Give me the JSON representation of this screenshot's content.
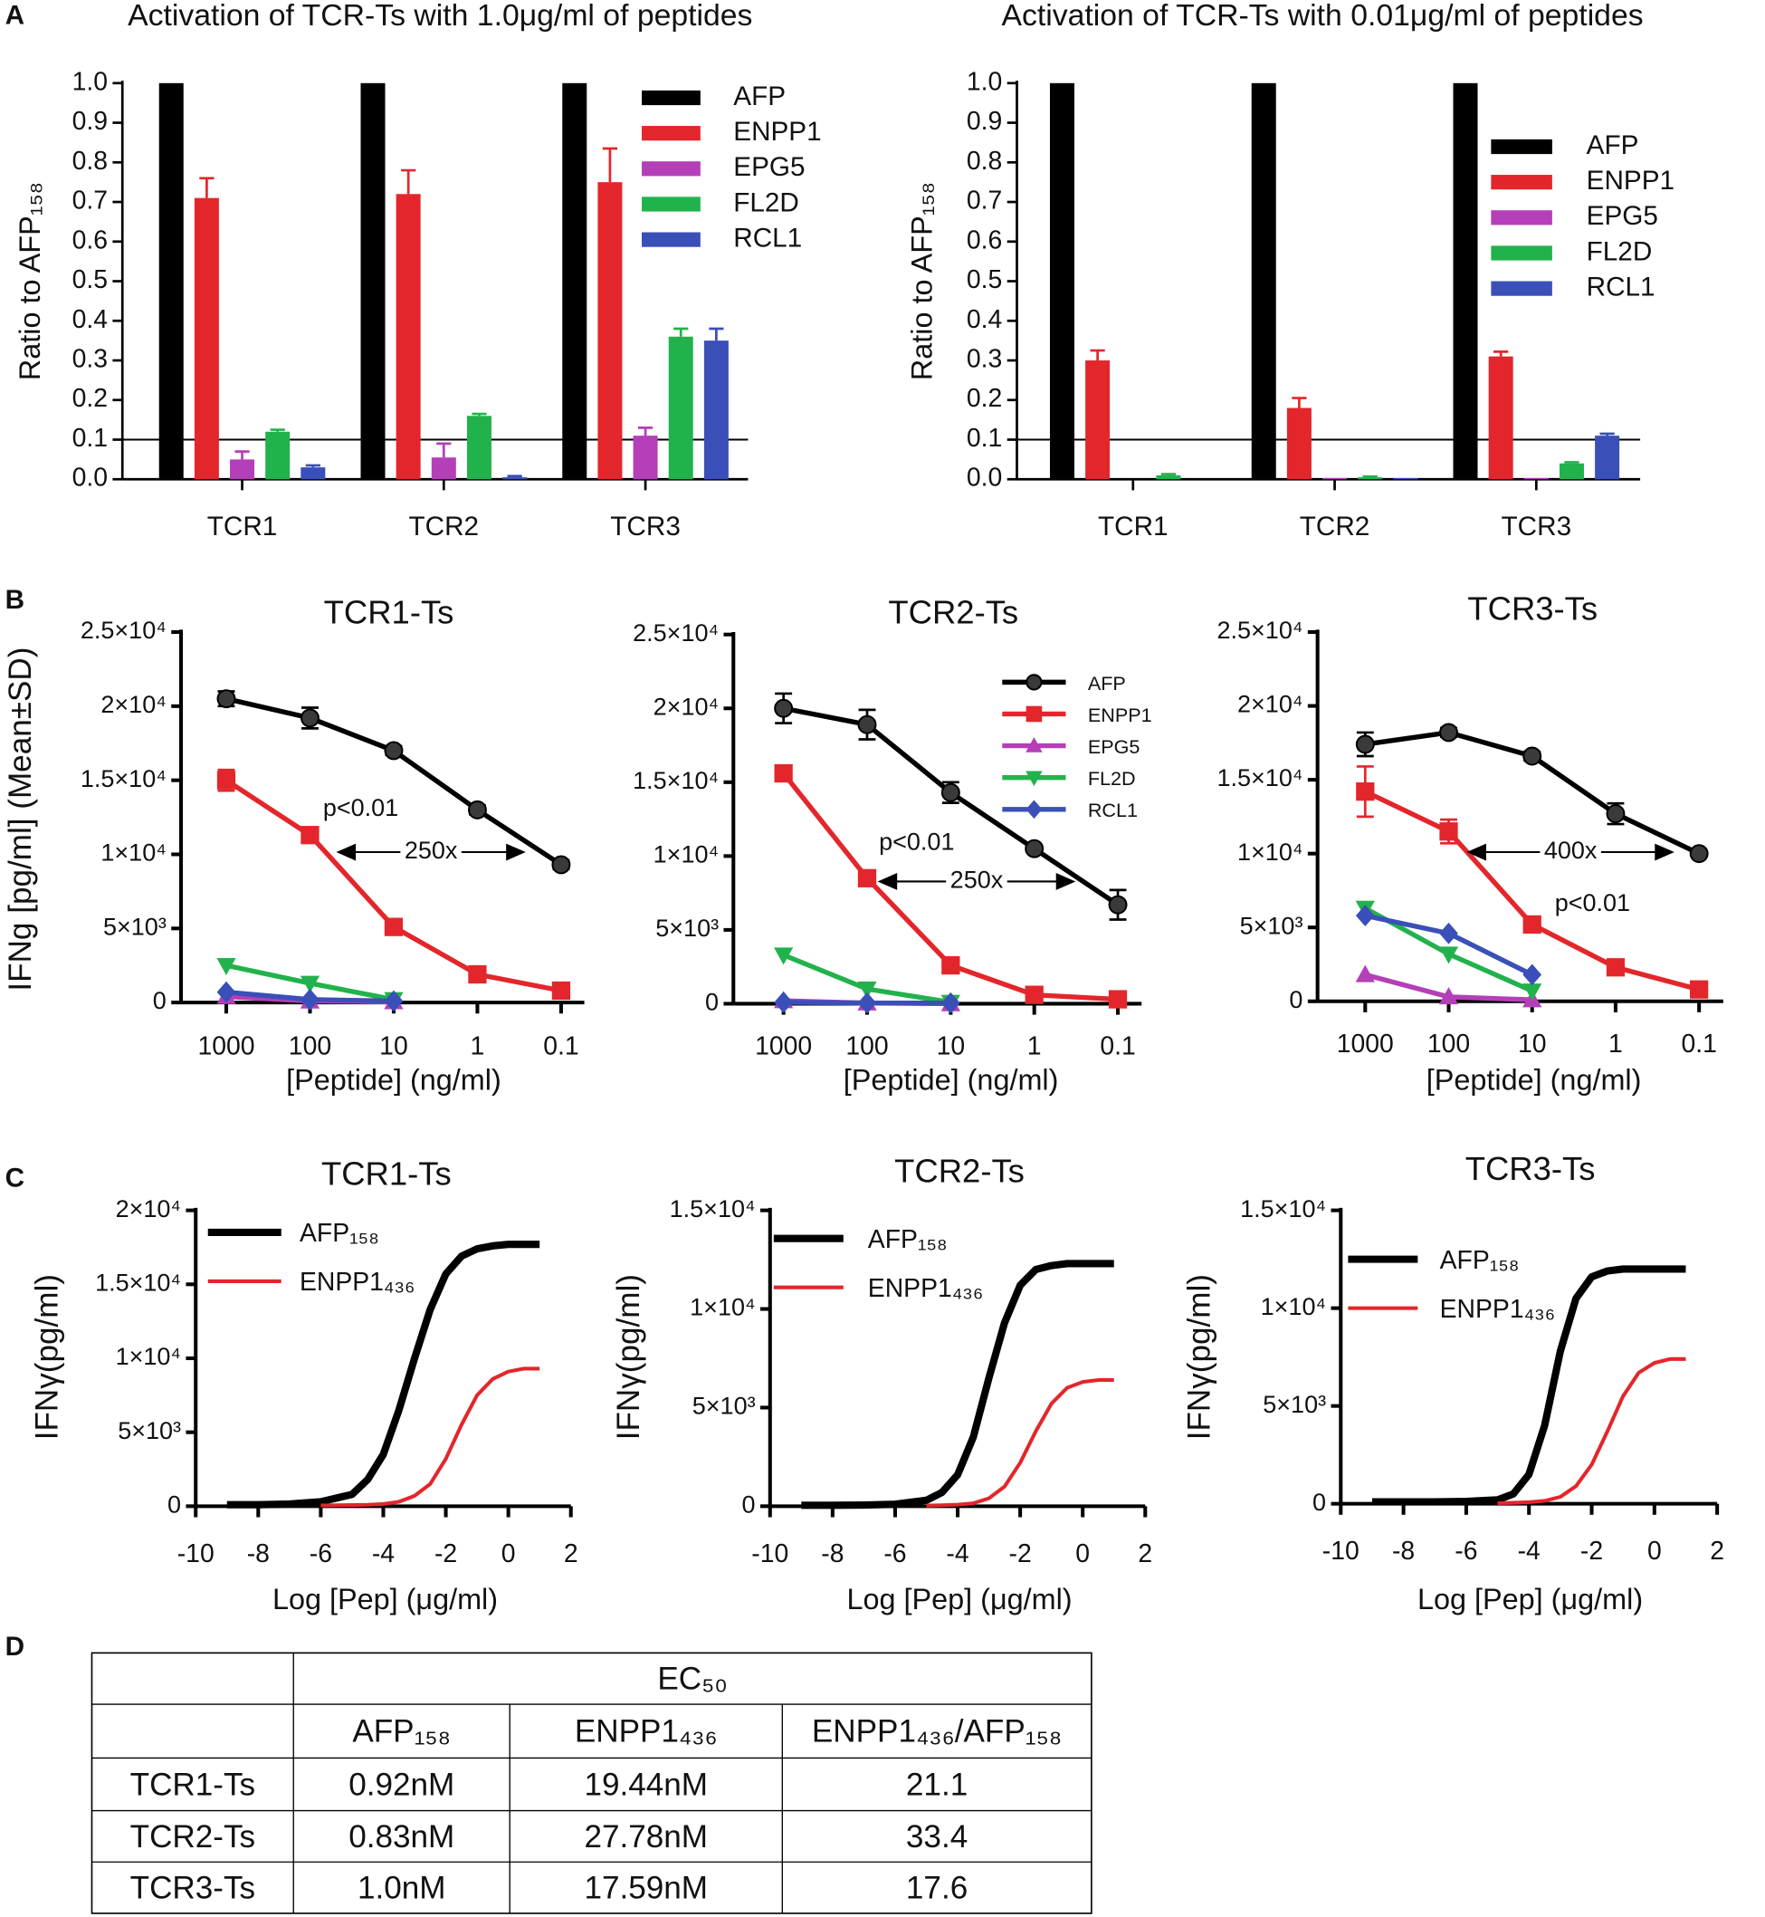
{
  "panel_labels": [
    "A",
    "B",
    "C",
    "D"
  ],
  "chart_data": [
    {
      "type": "bar",
      "title": "Activation of TCR-Ts with 1.0μg/ml of peptides",
      "ylabel": "Ratio to AFP₁₅₈",
      "categories": [
        "TCR1",
        "TCR2",
        "TCR3"
      ],
      "series": [
        {
          "name": "AFP",
          "color": "#000000",
          "values": [
            1.0,
            1.0,
            1.0
          ]
        },
        {
          "name": "ENPP1",
          "color": "#e3262b",
          "values": [
            0.71,
            0.72,
            0.75
          ],
          "errors": [
            0.05,
            0.06,
            0.085
          ]
        },
        {
          "name": "EPG5",
          "color": "#b43fb8",
          "values": [
            0.05,
            0.055,
            0.11
          ],
          "errors": [
            0.02,
            0.035,
            0.02
          ]
        },
        {
          "name": "FL2D",
          "color": "#22b24c",
          "values": [
            0.12,
            0.16,
            0.36
          ],
          "errors": [
            0.005,
            0.005,
            0.02
          ]
        },
        {
          "name": "RCL1",
          "color": "#3a4fb8",
          "values": [
            0.03,
            0.005,
            0.35
          ],
          "errors": [
            0.005,
            0.003,
            0.03
          ]
        }
      ],
      "ylim": [
        0,
        1.0
      ],
      "yticks": [
        {
          "value": 0,
          "label": "0.0"
        },
        0.1,
        0.2,
        0.3,
        0.4,
        0.5,
        0.6,
        0.7,
        0.8,
        0.9,
        {
          "value": 1.0,
          "label": "1.0"
        }
      ],
      "reference_line": 0.1,
      "legend": true
    },
    {
      "type": "bar",
      "title": "Activation of TCR-Ts with 0.01μg/ml of peptides",
      "ylabel": "Ratio to AFP₁₅₈",
      "categories": [
        "TCR1",
        "TCR2",
        "TCR3"
      ],
      "series": [
        {
          "name": "AFP",
          "color": "#000000",
          "values": [
            1.0,
            1.0,
            1.0
          ]
        },
        {
          "name": "ENPP1",
          "color": "#e3262b",
          "values": [
            0.3,
            0.18,
            0.31
          ],
          "errors": [
            0.025,
            0.025,
            0.012
          ]
        },
        {
          "name": "EPG5",
          "color": "#b43fb8",
          "values": [
            0,
            0.003,
            0.003
          ]
        },
        {
          "name": "FL2D",
          "color": "#22b24c",
          "values": [
            0.01,
            0.005,
            0.04
          ],
          "errors": [
            0.003,
            0.002,
            0.003
          ]
        },
        {
          "name": "RCL1",
          "color": "#3a4fb8",
          "values": [
            0,
            0.003,
            0.11
          ],
          "errors": [
            0,
            0,
            0.005
          ]
        }
      ],
      "ylim": [
        0,
        1.0
      ],
      "yticks": [
        {
          "value": 0,
          "label": "0.0"
        },
        0.1,
        0.2,
        0.3,
        0.4,
        0.5,
        0.6,
        0.7,
        0.8,
        0.9,
        {
          "value": 1.0,
          "label": "1.0"
        }
      ],
      "reference_line": 0.1,
      "legend": true
    },
    {
      "type": "line",
      "title": "TCR1-Ts",
      "ylabel": "IFNg [pg/ml] (Mean±SD)",
      "xlabel": "[Peptide] (ng/ml)",
      "categories": [
        "1000",
        "100",
        "10",
        "1",
        "0.1"
      ],
      "series": [
        {
          "name": "AFP",
          "color": "#000000",
          "marker": "circle",
          "values": [
            20500,
            19200,
            17000,
            13000,
            9300
          ],
          "errors": [
            500,
            700,
            300,
            300,
            300
          ]
        },
        {
          "name": "ENPP1",
          "color": "#e3262b",
          "marker": "square",
          "values": [
            15000,
            11300,
            5100,
            1900,
            800
          ],
          "errors": [
            700,
            400,
            200,
            200,
            100
          ]
        },
        {
          "name": "EPG5",
          "color": "#b43fb8",
          "marker": "triangle",
          "values": [
            400,
            100,
            50,
            null,
            null
          ]
        },
        {
          "name": "FL2D",
          "color": "#22b24c",
          "marker": "triangle-down",
          "values": [
            2500,
            1300,
            200,
            null,
            null
          ]
        },
        {
          "name": "RCL1",
          "color": "#3a4fb8",
          "marker": "diamond",
          "values": [
            700,
            200,
            100,
            null,
            null
          ]
        }
      ],
      "ylim": [
        0,
        25000
      ],
      "yticks": [
        0,
        {
          "value": 5000,
          "label": "5×10³"
        },
        {
          "value": 10000,
          "label": "1×10⁴"
        },
        {
          "value": 15000,
          "label": "1.5×10⁴"
        },
        {
          "value": 20000,
          "label": "2×10⁴"
        },
        {
          "value": 25000,
          "label": "2.5×10⁴"
        }
      ],
      "annotations": [
        {
          "text": "p<0.01"
        },
        {
          "text": "250x"
        }
      ],
      "legend": false
    },
    {
      "type": "line",
      "title": "TCR2-Ts",
      "xlabel": "[Peptide] (ng/ml)",
      "categories": [
        "1000",
        "100",
        "10",
        "1",
        "0.1"
      ],
      "series": [
        {
          "name": "AFP",
          "color": "#000000",
          "marker": "circle",
          "values": [
            20000,
            18900,
            14300,
            10500,
            6700
          ],
          "errors": [
            1000,
            1000,
            700,
            200,
            1000
          ]
        },
        {
          "name": "ENPP1",
          "color": "#e3262b",
          "marker": "square",
          "values": [
            15600,
            8500,
            2600,
            600,
            300
          ],
          "errors": [
            300,
            300,
            200,
            100,
            100
          ]
        },
        {
          "name": "EPG5",
          "color": "#b43fb8",
          "marker": "triangle",
          "values": [
            200,
            50,
            0,
            null,
            null
          ]
        },
        {
          "name": "FL2D",
          "color": "#22b24c",
          "marker": "triangle-down",
          "values": [
            3300,
            1000,
            100,
            null,
            null
          ]
        },
        {
          "name": "RCL1",
          "color": "#3a4fb8",
          "marker": "diamond",
          "values": [
            100,
            50,
            50,
            null,
            null
          ]
        }
      ],
      "ylim": [
        0,
        25000
      ],
      "yticks": [
        0,
        {
          "value": 5000,
          "label": "5×10³"
        },
        {
          "value": 10000,
          "label": "1×10⁴"
        },
        {
          "value": 15000,
          "label": "1.5×10⁴"
        },
        {
          "value": 20000,
          "label": "2×10⁴"
        },
        {
          "value": 25000,
          "label": "2.5×10⁴"
        }
      ],
      "annotations": [
        {
          "text": "p<0.01"
        },
        {
          "text": "250x"
        }
      ],
      "legend": true
    },
    {
      "type": "line",
      "title": "TCR3-Ts",
      "xlabel": "[Peptide] (ng/ml)",
      "categories": [
        "1000",
        "100",
        "10",
        "1",
        "0.1"
      ],
      "series": [
        {
          "name": "AFP",
          "color": "#000000",
          "marker": "circle",
          "values": [
            17400,
            18200,
            16600,
            12700,
            10000
          ],
          "errors": [
            800,
            300,
            300,
            700,
            200
          ]
        },
        {
          "name": "ENPP1",
          "color": "#e3262b",
          "marker": "square",
          "values": [
            14200,
            11500,
            5200,
            2300,
            800
          ],
          "errors": [
            1700,
            800,
            200,
            200,
            100
          ]
        },
        {
          "name": "EPG5",
          "color": "#b43fb8",
          "marker": "triangle",
          "values": [
            1800,
            300,
            100,
            null,
            null
          ]
        },
        {
          "name": "FL2D",
          "color": "#22b24c",
          "marker": "triangle-down",
          "values": [
            6300,
            3200,
            700,
            null,
            null
          ]
        },
        {
          "name": "RCL1",
          "color": "#3a4fb8",
          "marker": "diamond",
          "values": [
            5800,
            4600,
            1800,
            null,
            null
          ]
        }
      ],
      "ylim": [
        0,
        25000
      ],
      "yticks": [
        0,
        {
          "value": 5000,
          "label": "5×10³"
        },
        {
          "value": 10000,
          "label": "1×10⁴"
        },
        {
          "value": 15000,
          "label": "1.5×10⁴"
        },
        {
          "value": 20000,
          "label": "2×10⁴"
        },
        {
          "value": 25000,
          "label": "2.5×10⁴"
        }
      ],
      "annotations": [
        {
          "text": "400x"
        },
        {
          "text": "p<0.01"
        }
      ],
      "legend": false
    },
    {
      "type": "line",
      "title": "TCR1-Ts",
      "ylabel": "IFNγ(pg/ml)",
      "xlabel": "Log [Pep] (μg/ml)",
      "x": [
        -9,
        -8,
        -7,
        -6,
        -5,
        -4.5,
        -4,
        -3.5,
        -3,
        -2.5,
        -2,
        -1.5,
        -1,
        -0.5,
        0,
        0.5,
        1
      ],
      "series": [
        {
          "name": "AFP₁₅₈",
          "color": "#000000",
          "width": 6,
          "values": [
            100,
            100,
            150,
            300,
            800,
            1800,
            3500,
            6500,
            10000,
            13300,
            15700,
            16900,
            17400,
            17600,
            17700,
            17700,
            17700
          ]
        },
        {
          "name": "ENPP1₄₃₆",
          "color": "#e3262b",
          "width": 3,
          "values": [
            null,
            null,
            null,
            50,
            80,
            100,
            150,
            300,
            700,
            1500,
            3200,
            5500,
            7500,
            8600,
            9100,
            9300,
            9300
          ]
        }
      ],
      "xlim": [
        -10,
        2
      ],
      "xticks": [
        -10,
        -8,
        -6,
        -4,
        -2,
        0,
        2
      ],
      "ylim": [
        0,
        20000
      ],
      "yticks": [
        0,
        {
          "value": 5000,
          "label": "5×10³"
        },
        {
          "value": 10000,
          "label": "1×10⁴"
        },
        {
          "value": 15000,
          "label": "1.5×10⁴"
        },
        {
          "value": 20000,
          "label": "2×10⁴"
        }
      ],
      "legend": true
    },
    {
      "type": "line",
      "title": "TCR2-Ts",
      "ylabel": "IFNγ(pg/ml)",
      "xlabel": "Log [Pep] (μg/ml)",
      "x": [
        -9,
        -8,
        -7,
        -6,
        -5,
        -4.5,
        -4,
        -3.5,
        -3,
        -2.5,
        -2,
        -1.5,
        -1,
        -0.5,
        0,
        0.5,
        1
      ],
      "series": [
        {
          "name": "AFP₁₅₈",
          "color": "#000000",
          "width": 6,
          "values": [
            50,
            50,
            60,
            100,
            300,
            700,
            1600,
            3500,
            6500,
            9300,
            11200,
            12000,
            12200,
            12300,
            12300,
            12300,
            12300
          ]
        },
        {
          "name": "ENPP1₄₃₆",
          "color": "#e3262b",
          "width": 3,
          "values": [
            null,
            null,
            null,
            null,
            30,
            50,
            80,
            150,
            400,
            1000,
            2200,
            3800,
            5200,
            6000,
            6300,
            6400,
            6400
          ]
        }
      ],
      "xlim": [
        -10,
        2
      ],
      "xticks": [
        -10,
        -8,
        -6,
        -4,
        -2,
        0,
        2
      ],
      "ylim": [
        0,
        15000
      ],
      "yticks": [
        0,
        {
          "value": 5000,
          "label": "5×10³"
        },
        {
          "value": 10000,
          "label": "1×10⁴"
        },
        {
          "value": 15000,
          "label": "1.5×10⁴"
        }
      ],
      "legend": true
    },
    {
      "type": "line",
      "title": "TCR3-Ts",
      "ylabel": "IFNγ(pg/ml)",
      "xlabel": "Log [Pep] (μg/ml)",
      "x": [
        -9,
        -8,
        -7,
        -6,
        -5,
        -4.5,
        -4,
        -3.5,
        -3,
        -2.5,
        -2,
        -1.5,
        -1,
        -0.5,
        0,
        0.5,
        1
      ],
      "series": [
        {
          "name": "AFP₁₅₈",
          "color": "#000000",
          "width": 6,
          "values": [
            100,
            100,
            100,
            120,
            200,
            500,
            1500,
            4000,
            7800,
            10500,
            11600,
            11900,
            12000,
            12000,
            12000,
            12000,
            12000
          ]
        },
        {
          "name": "ENPP1₄₃₆",
          "color": "#e3262b",
          "width": 3,
          "values": [
            null,
            null,
            null,
            null,
            30,
            50,
            80,
            150,
            350,
            900,
            2000,
            3700,
            5500,
            6700,
            7200,
            7400,
            7400
          ]
        }
      ],
      "xlim": [
        -10,
        2
      ],
      "xticks": [
        -10,
        -8,
        -6,
        -4,
        -2,
        0,
        2
      ],
      "ylim": [
        0,
        15000
      ],
      "yticks": [
        0,
        {
          "value": 5000,
          "label": "5×10³"
        },
        {
          "value": 10000,
          "label": "1×10⁴"
        },
        {
          "value": 15000,
          "label": "1.5×10⁴"
        }
      ],
      "legend": true
    }
  ],
  "table": {
    "header": "EC₅₀",
    "columns": [
      "AFP₁₅₈",
      "ENPP1₄₃₆",
      "ENPP1₄₃₆/AFP₁₅₈"
    ],
    "rows": [
      [
        "TCR1-Ts",
        "0.92nM",
        "19.44nM",
        "21.1"
      ],
      [
        "TCR2-Ts",
        "0.83nM",
        "27.78nM",
        "33.4"
      ],
      [
        "TCR3-Ts",
        "1.0nM",
        "17.59nM",
        "17.6"
      ]
    ]
  }
}
